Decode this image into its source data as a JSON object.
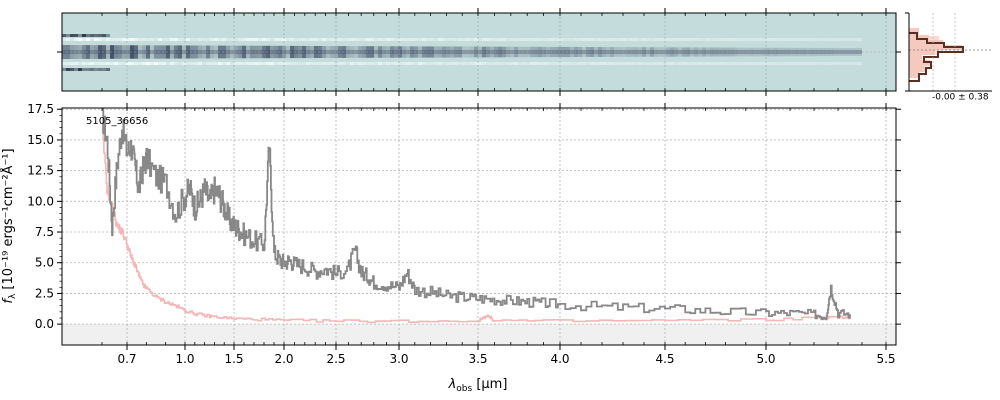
{
  "chart_data": {
    "type": "line",
    "object_id": "5105_36656",
    "xlabel": "λobs [μm]",
    "xlabel_parts": {
      "symbol": "λ",
      "subscript": "obs",
      "unit": " [μm]"
    },
    "ylabel": "fλ [10⁻¹⁹ ergs⁻¹cm⁻²Å⁻¹]",
    "ylabel_parts": {
      "symbol": "f",
      "subscript": "λ",
      "unit": " [10⁻¹⁹ ergs⁻¹cm⁻²Å⁻¹]"
    },
    "xtick_labels": [
      "0.7",
      "1.0",
      "1.5",
      "2.0",
      "2.5",
      "3.0",
      "3.5",
      "4.0",
      "4.5",
      "5.0",
      "5.5"
    ],
    "xtick_values": [
      0.7,
      1.0,
      1.5,
      2.0,
      2.5,
      3.0,
      3.5,
      4.0,
      4.5,
      5.0,
      5.5
    ],
    "ytick_labels": [
      "0.0",
      "2.5",
      "5.0",
      "7.5",
      "10.0",
      "12.5",
      "15.0",
      "17.5"
    ],
    "ytick_values": [
      0.0,
      2.5,
      5.0,
      7.5,
      10.0,
      12.5,
      15.0,
      17.5
    ],
    "ylim": [
      -1.7,
      17.6
    ],
    "grid": true,
    "colors": {
      "flux": "#888888",
      "error": "#f4b6b6",
      "image": "#c5dcdc",
      "hist_fill": "#f6c9be",
      "hist_line": "#5a2e22"
    },
    "series": [
      {
        "role": "flux",
        "x": [
          0.6,
          0.62,
          0.64,
          0.66,
          0.68,
          0.7,
          0.72,
          0.74,
          0.76,
          0.78,
          0.8,
          0.85,
          0.9,
          0.95,
          1.0,
          1.05,
          1.1,
          1.15,
          1.2,
          1.25,
          1.3,
          1.35,
          1.4,
          1.45,
          1.5,
          1.55,
          1.6,
          1.7,
          1.8,
          1.85,
          1.9,
          1.95,
          2.0,
          2.05,
          2.1,
          2.2,
          2.3,
          2.4,
          2.5,
          2.6,
          2.65,
          2.7,
          2.75,
          2.8,
          2.9,
          3.0,
          3.05,
          3.1,
          3.2,
          3.3,
          3.4,
          3.5,
          3.6,
          3.7,
          3.8,
          3.9,
          4.0,
          4.2,
          4.4,
          4.6,
          4.8,
          5.0,
          5.1,
          5.2,
          5.25,
          5.27,
          5.3,
          5.35
        ],
        "y": [
          17.0,
          15.0,
          8.0,
          13.0,
          16.0,
          14.0,
          14.5,
          13.0,
          11.0,
          12.5,
          13.5,
          12.0,
          11.5,
          9.0,
          10.5,
          11.0,
          9.5,
          10.0,
          11.0,
          10.0,
          11.0,
          10.5,
          9.5,
          8.5,
          8.0,
          7.7,
          7.3,
          6.8,
          6.4,
          14.5,
          5.8,
          5.3,
          5.0,
          5.2,
          4.9,
          4.7,
          4.3,
          4.5,
          4.1,
          4.6,
          6.0,
          4.2,
          3.9,
          3.4,
          3.2,
          3.0,
          4.2,
          2.8,
          2.6,
          2.3,
          2.2,
          2.1,
          2.0,
          1.9,
          1.8,
          1.7,
          1.6,
          1.4,
          1.3,
          1.2,
          1.0,
          0.9,
          0.9,
          0.8,
          0.6,
          3.0,
          0.9,
          0.8
        ]
      },
      {
        "role": "error",
        "x": [
          0.6,
          0.62,
          0.64,
          0.66,
          0.68,
          0.7,
          0.72,
          0.74,
          0.76,
          0.78,
          0.8,
          0.85,
          0.9,
          0.95,
          1.0,
          1.1,
          1.2,
          1.3,
          1.5,
          1.7,
          2.0,
          2.5,
          3.0,
          3.5,
          3.55,
          3.6,
          4.0,
          4.5,
          5.0,
          5.3,
          5.35
        ],
        "y": [
          16.0,
          11.0,
          9.5,
          8.0,
          7.5,
          6.5,
          5.5,
          4.8,
          4.0,
          3.3,
          2.9,
          2.2,
          1.8,
          1.5,
          1.1,
          0.85,
          0.7,
          0.6,
          0.45,
          0.4,
          0.3,
          0.25,
          0.25,
          0.25,
          0.7,
          0.3,
          0.25,
          0.3,
          0.35,
          0.6,
          0.4
        ]
      }
    ],
    "side_histogram": {
      "annotation": "-0.00 ± 0.38"
    }
  }
}
